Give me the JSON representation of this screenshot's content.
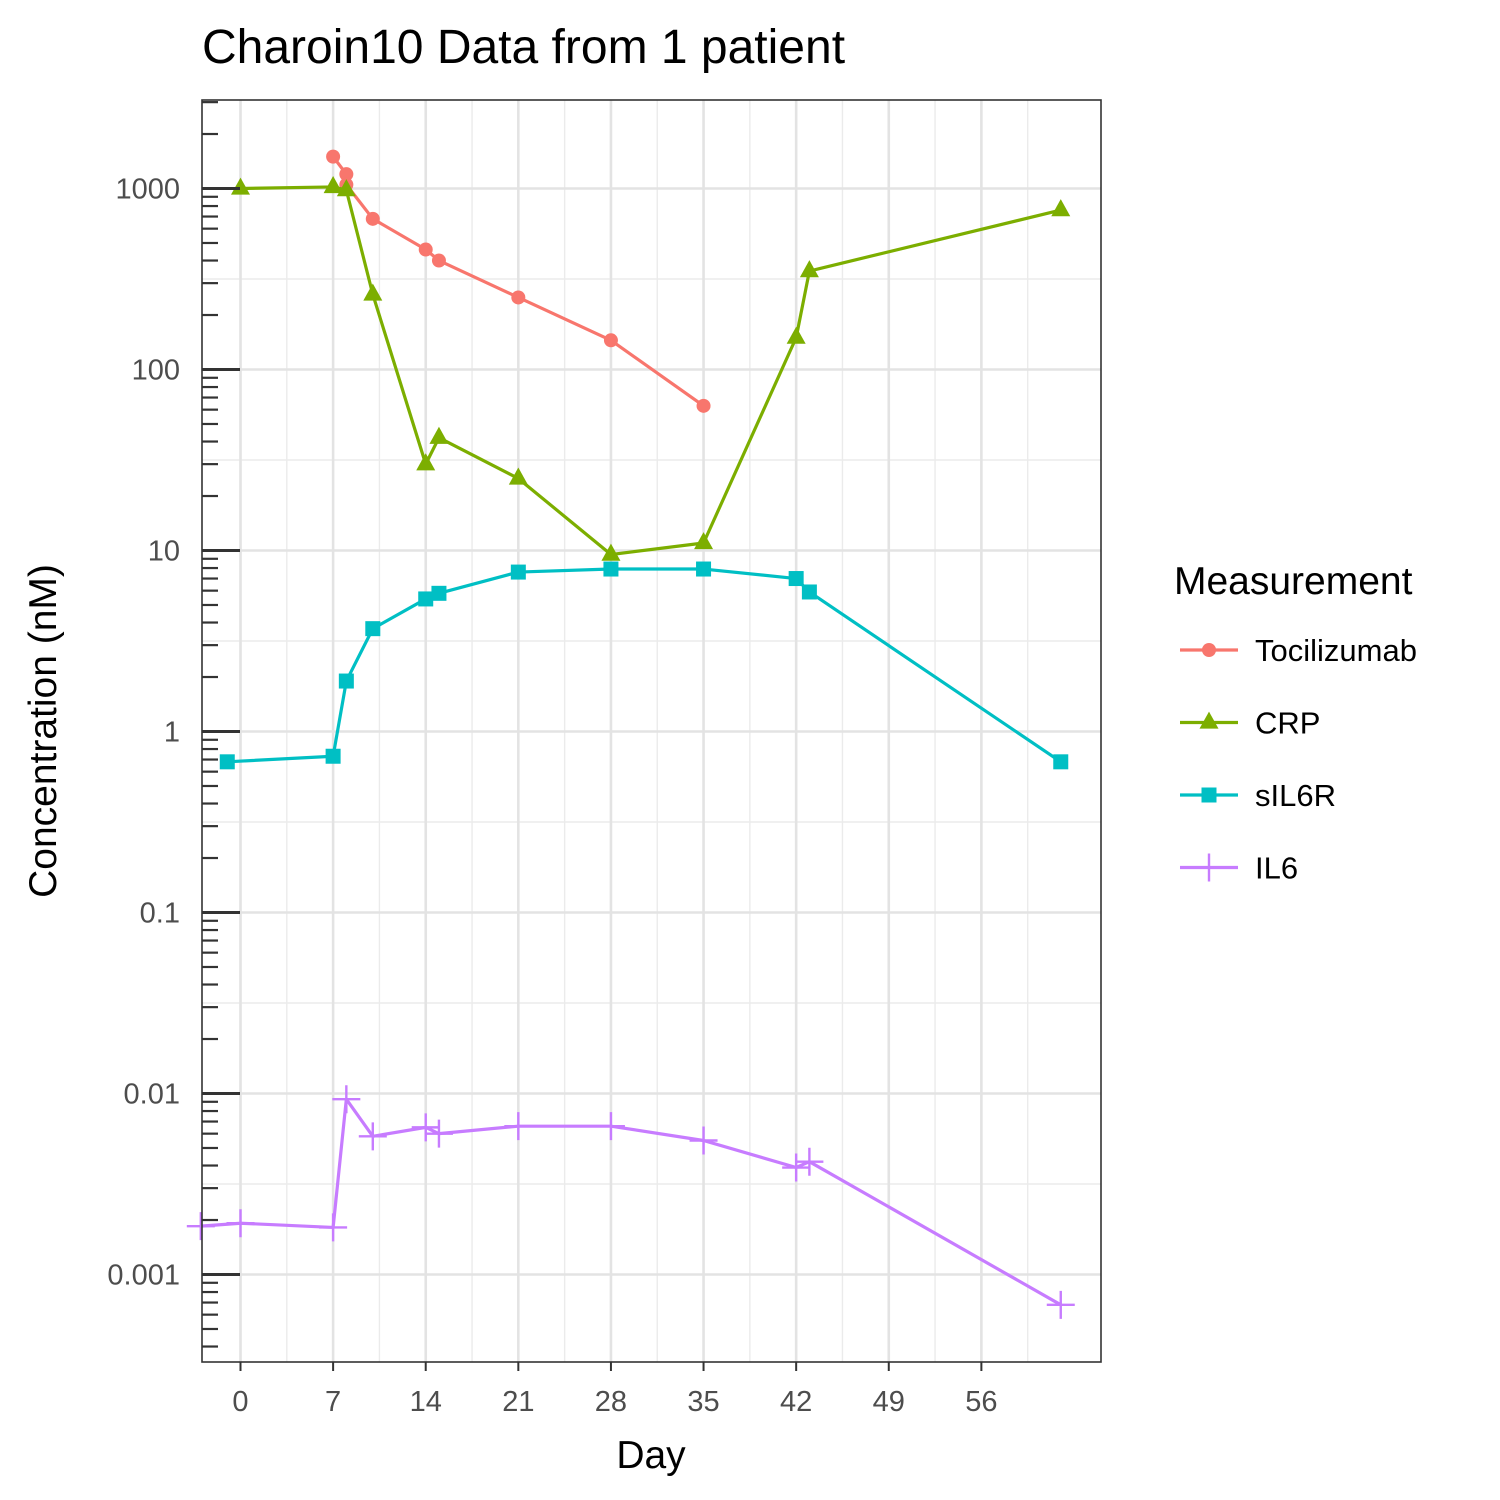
{
  "chart_data": {
    "type": "line",
    "title": "Charoin10 Data from 1 patient",
    "xlabel": "Day",
    "ylabel": "Concentration (nM)",
    "x_scale": "linear",
    "y_scale": "log10",
    "xlim": [
      -3,
      63
    ],
    "ylim": [
      0.0002,
      3000
    ],
    "x_ticks": [
      0,
      7,
      14,
      21,
      28,
      35,
      42,
      49,
      56
    ],
    "x_tick_labels": [
      "0",
      "7",
      "14",
      "21",
      "28",
      "35",
      "42",
      "49",
      "56"
    ],
    "y_ticks": [
      0.001,
      0.01,
      0.1,
      1,
      10,
      100,
      1000
    ],
    "y_tick_labels": [
      "0.001",
      "0.01",
      "0.1",
      "1",
      "10",
      "100",
      "1000"
    ],
    "grid": true,
    "legend": {
      "title": "Measurement",
      "position": "right"
    },
    "series": [
      {
        "name": "Tocilizumab",
        "color": "#F8766D",
        "marker": "circle",
        "points": [
          [
            7,
            1500
          ],
          [
            8,
            1200
          ],
          [
            8,
            1050
          ],
          [
            10,
            680
          ],
          [
            14,
            460
          ],
          [
            15,
            400
          ],
          [
            21,
            250
          ],
          [
            28,
            145
          ],
          [
            35,
            63
          ]
        ]
      },
      {
        "name": "CRP",
        "color": "#7CAE00",
        "marker": "triangle",
        "points": [
          [
            0,
            1000
          ],
          [
            7,
            1020
          ],
          [
            8,
            980
          ],
          [
            10,
            260
          ],
          [
            14,
            30
          ],
          [
            15,
            42
          ],
          [
            21,
            25
          ],
          [
            28,
            9.5
          ],
          [
            35,
            11
          ],
          [
            42,
            150
          ],
          [
            43,
            350
          ],
          [
            62,
            760
          ]
        ]
      },
      {
        "name": "sIL6R",
        "color": "#00BFC4",
        "marker": "square",
        "points": [
          [
            -1,
            0.68
          ],
          [
            7,
            0.73
          ],
          [
            8,
            1.9
          ],
          [
            10,
            3.7
          ],
          [
            14,
            5.4
          ],
          [
            15,
            5.8
          ],
          [
            21,
            7.6
          ],
          [
            28,
            7.9
          ],
          [
            35,
            7.9
          ],
          [
            42,
            7.0
          ],
          [
            43,
            5.9
          ],
          [
            62,
            0.68
          ]
        ]
      },
      {
        "name": "IL6",
        "color": "#C77CFF",
        "marker": "plus",
        "points": [
          [
            -3,
            0.00185
          ],
          [
            0,
            0.00192
          ],
          [
            7,
            0.00182
          ],
          [
            8,
            0.0093
          ],
          [
            10,
            0.0058
          ],
          [
            14,
            0.0065
          ],
          [
            15,
            0.006
          ],
          [
            21,
            0.0066
          ],
          [
            28,
            0.0066
          ],
          [
            35,
            0.0055
          ],
          [
            42,
            0.0039
          ],
          [
            43,
            0.0042
          ],
          [
            62,
            0.00068
          ]
        ]
      }
    ]
  }
}
